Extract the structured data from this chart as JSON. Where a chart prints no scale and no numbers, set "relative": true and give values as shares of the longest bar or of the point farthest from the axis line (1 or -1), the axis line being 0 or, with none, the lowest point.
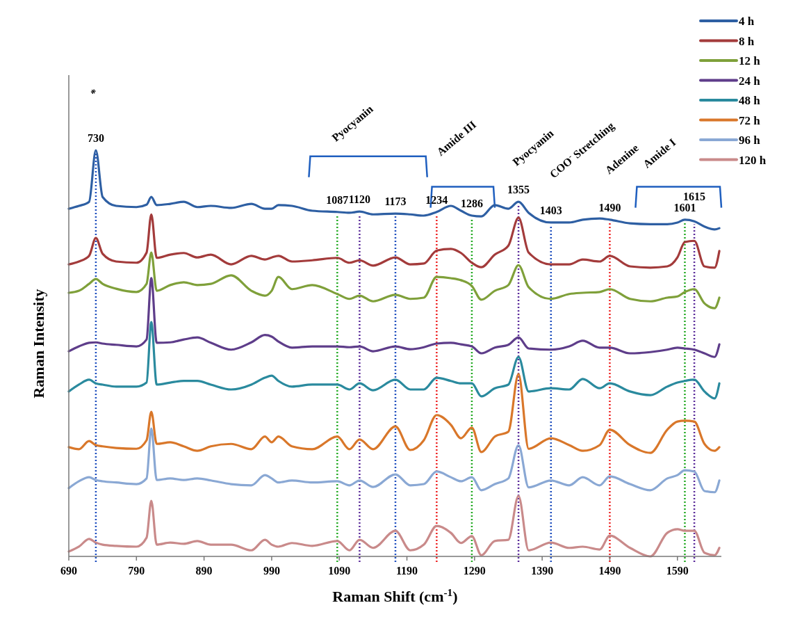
{
  "chart_data": {
    "type": "line",
    "relative": true,
    "xlabel": "Raman Shift (cm$^{-1}$)",
    "ylabel": "Raman Intensity",
    "xlim": [
      690,
      1655
    ],
    "xticks": [
      690,
      790,
      890,
      990,
      1090,
      1190,
      1290,
      1390,
      1490,
      1590
    ],
    "legend": "top right",
    "marker": "none",
    "line_style": "solid",
    "grid": false,
    "x": [
      690,
      705,
      720,
      730,
      740,
      760,
      790,
      805,
      812,
      820,
      840,
      860,
      880,
      900,
      930,
      960,
      980,
      990,
      1000,
      1020,
      1050,
      1087,
      1105,
      1120,
      1140,
      1173,
      1195,
      1215,
      1234,
      1255,
      1270,
      1286,
      1300,
      1320,
      1340,
      1355,
      1370,
      1403,
      1430,
      1450,
      1475,
      1490,
      1520,
      1550,
      1575,
      1590,
      1601,
      1615,
      1630,
      1645,
      1652
    ],
    "series": [
      {
        "name": "4 h",
        "color": "#2e5fa3",
        "values": [
          0.856,
          0.863,
          0.873,
          1,
          0.885,
          0.863,
          0.86,
          0.866,
          0.885,
          0.865,
          0.868,
          0.873,
          0.86,
          0.863,
          0.858,
          0.868,
          0.856,
          0.856,
          0.865,
          0.863,
          0.851,
          0.848,
          0.846,
          0.849,
          0.842,
          0.844,
          0.842,
          0.839,
          0.848,
          0.863,
          0.851,
          0.839,
          0.837,
          0.865,
          0.856,
          0.873,
          0.846,
          0.822,
          0.822,
          0.829,
          0.832,
          0.829,
          0.82,
          0.818,
          0.818,
          0.822,
          0.829,
          0.825,
          0.812,
          0.805,
          0.808
        ]
      },
      {
        "name": "8 h",
        "color": "#a33b3b",
        "values": [
          0.719,
          0.726,
          0.74,
          0.784,
          0.745,
          0.726,
          0.723,
          0.748,
          0.842,
          0.735,
          0.743,
          0.747,
          0.736,
          0.743,
          0.719,
          0.74,
          0.731,
          0.736,
          0.74,
          0.726,
          0.729,
          0.735,
          0.723,
          0.729,
          0.716,
          0.736,
          0.719,
          0.721,
          0.753,
          0.757,
          0.747,
          0.723,
          0.712,
          0.743,
          0.765,
          0.834,
          0.748,
          0.719,
          0.719,
          0.731,
          0.726,
          0.74,
          0.714,
          0.711,
          0.714,
          0.736,
          0.774,
          0.777,
          0.714,
          0.711,
          0.752
        ]
      },
      {
        "name": "12 h",
        "color": "#7fa03a",
        "values": [
          0.649,
          0.654,
          0.671,
          0.683,
          0.671,
          0.659,
          0.651,
          0.671,
          0.748,
          0.654,
          0.668,
          0.675,
          0.668,
          0.671,
          0.692,
          0.654,
          0.642,
          0.654,
          0.688,
          0.658,
          0.668,
          0.646,
          0.634,
          0.642,
          0.628,
          0.644,
          0.634,
          0.637,
          0.688,
          0.685,
          0.68,
          0.666,
          0.632,
          0.654,
          0.668,
          0.717,
          0.663,
          0.634,
          0.646,
          0.649,
          0.651,
          0.658,
          0.634,
          0.628,
          0.637,
          0.64,
          0.651,
          0.658,
          0.623,
          0.611,
          0.637
        ]
      },
      {
        "name": "24 h",
        "color": "#5e3d8a",
        "values": [
          0.505,
          0.517,
          0.526,
          0.527,
          0.524,
          0.521,
          0.517,
          0.534,
          0.685,
          0.526,
          0.527,
          0.534,
          0.539,
          0.526,
          0.509,
          0.527,
          0.545,
          0.541,
          0.529,
          0.514,
          0.517,
          0.517,
          0.515,
          0.517,
          0.505,
          0.517,
          0.51,
          0.515,
          0.524,
          0.526,
          0.522,
          0.517,
          0.5,
          0.514,
          0.521,
          0.539,
          0.512,
          0.509,
          0.517,
          0.531,
          0.514,
          0.514,
          0.5,
          0.503,
          0.509,
          0.514,
          0.512,
          0.509,
          0.5,
          0.491,
          0.522
        ]
      },
      {
        "name": "48 h",
        "color": "#2a8a9e",
        "values": [
          0.406,
          0.423,
          0.435,
          0.426,
          0.423,
          0.418,
          0.418,
          0.428,
          0.577,
          0.423,
          0.428,
          0.432,
          0.432,
          0.423,
          0.411,
          0.423,
          0.44,
          0.445,
          0.432,
          0.418,
          0.423,
          0.423,
          0.411,
          0.426,
          0.409,
          0.435,
          0.411,
          0.411,
          0.44,
          0.432,
          0.426,
          0.426,
          0.394,
          0.414,
          0.423,
          0.491,
          0.406,
          0.414,
          0.411,
          0.437,
          0.414,
          0.426,
          0.406,
          0.397,
          0.418,
          0.428,
          0.432,
          0.435,
          0.406,
          0.389,
          0.426
        ]
      },
      {
        "name": "72 h",
        "color": "#d9772a",
        "values": [
          0.269,
          0.264,
          0.284,
          0.274,
          0.271,
          0.267,
          0.265,
          0.286,
          0.356,
          0.277,
          0.281,
          0.271,
          0.26,
          0.271,
          0.277,
          0.264,
          0.295,
          0.281,
          0.295,
          0.271,
          0.264,
          0.295,
          0.264,
          0.288,
          0.264,
          0.32,
          0.262,
          0.286,
          0.348,
          0.324,
          0.291,
          0.317,
          0.257,
          0.295,
          0.307,
          0.449,
          0.265,
          0.291,
          0.274,
          0.26,
          0.274,
          0.312,
          0.274,
          0.255,
          0.312,
          0.332,
          0.334,
          0.332,
          0.277,
          0.26,
          0.269
        ]
      },
      {
        "name": "96 h",
        "color": "#8aa8d4",
        "values": [
          0.168,
          0.185,
          0.195,
          0.188,
          0.185,
          0.182,
          0.178,
          0.192,
          0.315,
          0.188,
          0.192,
          0.188,
          0.192,
          0.187,
          0.178,
          0.175,
          0.2,
          0.192,
          0.182,
          0.187,
          0.182,
          0.185,
          0.175,
          0.187,
          0.171,
          0.202,
          0.175,
          0.178,
          0.209,
          0.195,
          0.185,
          0.195,
          0.163,
          0.178,
          0.192,
          0.274,
          0.17,
          0.187,
          0.175,
          0.195,
          0.175,
          0.197,
          0.178,
          0.163,
          0.192,
          0.2,
          0.212,
          0.209,
          0.161,
          0.158,
          0.187
        ]
      },
      {
        "name": "120 h",
        "color": "#c98a8a",
        "values": [
          0.012,
          0.024,
          0.043,
          0.034,
          0.029,
          0.026,
          0.024,
          0.046,
          0.137,
          0.029,
          0.034,
          0.031,
          0.038,
          0.029,
          0.029,
          0.015,
          0.041,
          0.029,
          0.024,
          0.033,
          0.026,
          0.038,
          0.015,
          0.041,
          0.021,
          0.063,
          0.015,
          0.029,
          0.075,
          0.058,
          0.033,
          0.05,
          0.003,
          0.038,
          0.041,
          0.149,
          0.015,
          0.034,
          0.021,
          0.024,
          0.017,
          0.051,
          0.021,
          0,
          0.058,
          0.067,
          0.063,
          0.063,
          0.009,
          0.003,
          0.021
        ]
      }
    ],
    "ref_lines": [
      {
        "axis": "x",
        "value": 730,
        "label": "730",
        "color": "#1f4fbf",
        "line_style": "dotted"
      },
      {
        "axis": "x",
        "value": 1087,
        "label": "1087",
        "color": "#22aa22",
        "line_style": "dotted"
      },
      {
        "axis": "x",
        "value": 1120,
        "label": "1120",
        "color": "#5a2a9a",
        "line_style": "dotted"
      },
      {
        "axis": "x",
        "value": 1173,
        "label": "1173",
        "color": "#1f4fbf",
        "line_style": "dotted"
      },
      {
        "axis": "x",
        "value": 1234,
        "label": "1234",
        "color": "#ee2222",
        "line_style": "dotted"
      },
      {
        "axis": "x",
        "value": 1286,
        "label": "1286",
        "color": "#22aa22",
        "line_style": "dotted"
      },
      {
        "axis": "x",
        "value": 1355,
        "label": "1355",
        "color": "#5a2a9a",
        "line_style": "dotted"
      },
      {
        "axis": "x",
        "value": 1403,
        "label": "1403",
        "color": "#1f4fbf",
        "line_style": "dotted"
      },
      {
        "axis": "x",
        "value": 1490,
        "label": "1490",
        "color": "#ee2222",
        "line_style": "dotted"
      },
      {
        "axis": "x",
        "value": 1601,
        "label": "1601",
        "color": "#22aa22",
        "line_style": "dotted"
      },
      {
        "axis": "x",
        "value": 1615,
        "label": "1615",
        "color": "#5a2a9a",
        "line_style": "dotted"
      }
    ],
    "annotations": [
      "*",
      "Pyocyanin",
      "Amide III",
      "Pyocyanin",
      "COO$^{-}$ Stretching",
      "Adenine",
      "Amide I"
    ]
  }
}
